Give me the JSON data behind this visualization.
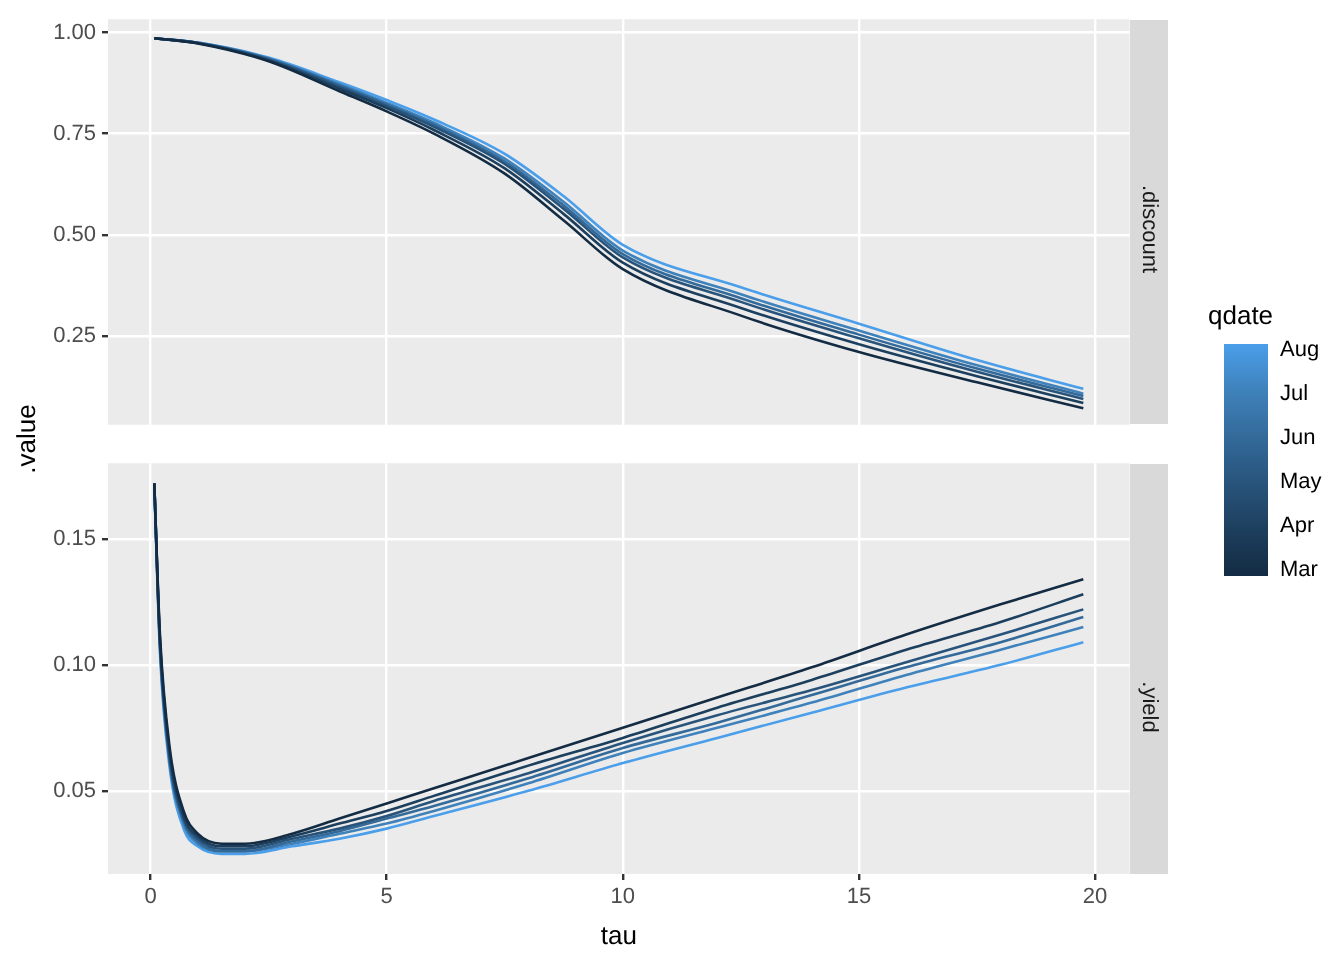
{
  "chart_data": [
    {
      "type": "line",
      "title": ".discount",
      "ylabel": ".value",
      "legend_title": "qdate",
      "legend": "right",
      "marker": "none",
      "grid": true,
      "tick_labels": "y",
      "xlim": [
        -0.9,
        20.73
      ],
      "xticks": [
        0,
        5,
        10,
        15,
        20
      ],
      "ylim": [
        0.03,
        1.033
      ],
      "yticks": [
        {
          "value": 0.25,
          "label": "0.25"
        },
        {
          "value": 0.5,
          "label": "0.50"
        },
        {
          "value": 0.75,
          "label": "0.75"
        },
        {
          "value": 1,
          "label": "1.00"
        }
      ],
      "series": [
        {
          "name": "Mar",
          "color": "#132b43",
          "x": [
            0.08,
            1,
            2.5,
            4,
            5,
            6,
            7.5,
            8.75,
            10,
            12.5,
            15,
            17.5,
            19.75
          ],
          "values": [
            0.986,
            0.973,
            0.929,
            0.855,
            0.805,
            0.75,
            0.651,
            0.535,
            0.415,
            0.3,
            0.21,
            0.135,
            0.071
          ]
        },
        {
          "name": "Apr",
          "color": "#1d3f5e",
          "x": [
            0.08,
            1,
            2.5,
            4,
            5,
            6,
            7.5,
            8.75,
            10,
            12.5,
            15,
            17.5,
            19.75
          ],
          "values": [
            0.986,
            0.974,
            0.931,
            0.861,
            0.813,
            0.759,
            0.664,
            0.551,
            0.431,
            0.319,
            0.229,
            0.15,
            0.084
          ]
        },
        {
          "name": "May",
          "color": "#28547b",
          "x": [
            0.08,
            1,
            2.5,
            4,
            5,
            6,
            7.5,
            8.75,
            10,
            12.5,
            15,
            17.5,
            19.75
          ],
          "values": [
            0.986,
            0.974,
            0.933,
            0.866,
            0.818,
            0.767,
            0.675,
            0.564,
            0.444,
            0.334,
            0.244,
            0.161,
            0.094
          ]
        },
        {
          "name": "Jun",
          "color": "#336a9a",
          "x": [
            0.08,
            1,
            2.5,
            4,
            5,
            6,
            7.5,
            8.75,
            10,
            12.5,
            15,
            17.5,
            19.75
          ],
          "values": [
            0.986,
            0.974,
            0.935,
            0.869,
            0.822,
            0.772,
            0.681,
            0.572,
            0.452,
            0.343,
            0.253,
            0.169,
            0.101
          ]
        },
        {
          "name": "Jul",
          "color": "#3f82bb",
          "x": [
            0.08,
            1,
            2.5,
            4,
            5,
            6,
            7.5,
            8.75,
            10,
            12.5,
            15,
            17.5,
            19.75
          ],
          "values": [
            0.986,
            0.975,
            0.936,
            0.872,
            0.826,
            0.777,
            0.688,
            0.581,
            0.461,
            0.353,
            0.263,
            0.177,
            0.107
          ]
        },
        {
          "name": "Aug",
          "color": "#4a9eea",
          "x": [
            0.08,
            1,
            2.5,
            4,
            5,
            6,
            7.5,
            8.75,
            10,
            12.5,
            15,
            17.5,
            19.75
          ],
          "values": [
            0.986,
            0.975,
            0.938,
            0.877,
            0.833,
            0.785,
            0.7,
            0.595,
            0.475,
            0.37,
            0.28,
            0.19,
            0.119
          ]
        }
      ]
    },
    {
      "type": "line",
      "title": ".yield",
      "xlabel": "tau",
      "marker": "none",
      "grid": true,
      "xlim": [
        -0.9,
        20.73
      ],
      "xticks": [
        0,
        5,
        10,
        15,
        20
      ],
      "ylim": [
        0.017,
        0.18
      ],
      "yticks": [
        {
          "value": 0.05,
          "label": "0.05"
        },
        {
          "value": 0.1,
          "label": "0.10"
        },
        {
          "value": 0.15,
          "label": "0.15"
        }
      ],
      "series": [
        {
          "color": "#132b43",
          "x": [
            0.08,
            0.2,
            0.4,
            0.7,
            1,
            1.5,
            2,
            3,
            4,
            5,
            6,
            8,
            10,
            12,
            14,
            16,
            18,
            19.75
          ],
          "values": [
            0.172,
            0.112,
            0.068,
            0.042,
            0.033,
            0.029,
            0.029,
            0.033,
            0.039,
            0.045,
            0.051,
            0.063,
            0.075,
            0.087,
            0.099,
            0.112,
            0.124,
            0.134
          ]
        },
        {
          "color": "#1d3f5e",
          "x": [
            0.08,
            0.2,
            0.4,
            0.7,
            1,
            1.5,
            2,
            3,
            4,
            5,
            6,
            8,
            10,
            12,
            14,
            16,
            18,
            19.75
          ],
          "values": [
            0.172,
            0.11,
            0.066,
            0.04,
            0.032,
            0.028,
            0.028,
            0.032,
            0.037,
            0.042,
            0.048,
            0.06,
            0.071,
            0.083,
            0.094,
            0.106,
            0.117,
            0.128
          ]
        },
        {
          "color": "#28547b",
          "x": [
            0.08,
            0.2,
            0.4,
            0.7,
            1,
            1.5,
            2,
            3,
            4,
            5,
            6,
            8,
            10,
            12,
            14,
            16,
            18,
            19.75
          ],
          "values": [
            0.172,
            0.109,
            0.064,
            0.039,
            0.031,
            0.027,
            0.027,
            0.031,
            0.035,
            0.04,
            0.046,
            0.057,
            0.069,
            0.08,
            0.09,
            0.101,
            0.112,
            0.122
          ]
        },
        {
          "color": "#336a9a",
          "x": [
            0.08,
            0.2,
            0.4,
            0.7,
            1,
            1.5,
            2,
            3,
            4,
            5,
            6,
            8,
            10,
            12,
            14,
            16,
            18,
            19.75
          ],
          "values": [
            0.172,
            0.108,
            0.063,
            0.038,
            0.03,
            0.026,
            0.026,
            0.03,
            0.034,
            0.039,
            0.044,
            0.055,
            0.067,
            0.077,
            0.088,
            0.099,
            0.109,
            0.119
          ]
        },
        {
          "color": "#3f82bb",
          "x": [
            0.08,
            0.2,
            0.4,
            0.7,
            1,
            1.5,
            2,
            3,
            4,
            5,
            6,
            8,
            10,
            12,
            14,
            16,
            18,
            19.75
          ],
          "values": [
            0.172,
            0.107,
            0.062,
            0.037,
            0.029,
            0.026,
            0.026,
            0.029,
            0.033,
            0.037,
            0.042,
            0.053,
            0.065,
            0.075,
            0.085,
            0.096,
            0.106,
            0.115
          ]
        },
        {
          "color": "#4a9eea",
          "x": [
            0.08,
            0.2,
            0.4,
            0.7,
            1,
            1.5,
            2,
            3,
            4,
            5,
            6,
            8,
            10,
            12,
            14,
            16,
            18,
            19.75
          ],
          "values": [
            0.172,
            0.105,
            0.06,
            0.035,
            0.028,
            0.025,
            0.025,
            0.028,
            0.031,
            0.035,
            0.04,
            0.05,
            0.061,
            0.071,
            0.081,
            0.091,
            0.1,
            0.109
          ]
        }
      ]
    }
  ]
}
